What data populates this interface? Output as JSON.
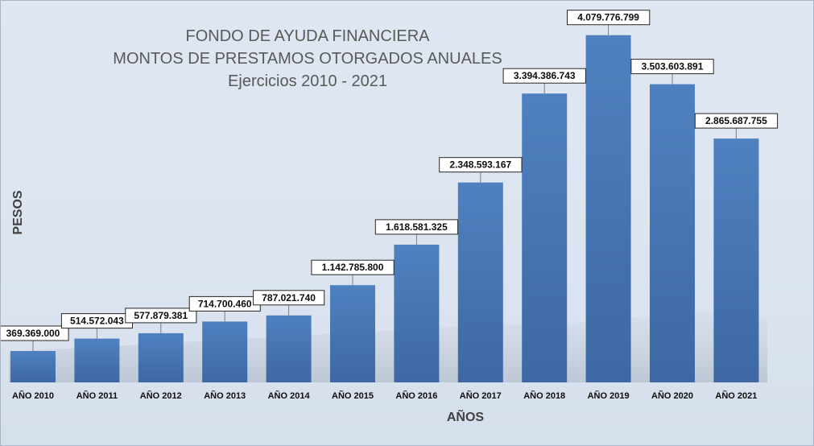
{
  "chart_data": {
    "type": "bar",
    "title_lines": [
      "FONDO DE AYUDA FINANCIERA",
      "MONTOS DE PRESTAMOS OTORGADOS ANUALES",
      "Ejercicios 2010 - 2021"
    ],
    "xlabel": "AÑOS",
    "ylabel": "PESOS",
    "categories": [
      "AÑO 2010",
      "AÑO 2011",
      "AÑO 2012",
      "AÑO 2013",
      "AÑO 2014",
      "AÑO 2015",
      "AÑO 2016",
      "AÑO 2017",
      "AÑO 2018",
      "AÑO 2019",
      "AÑO 2020",
      "AÑO 2021"
    ],
    "values": [
      369369000,
      514572043,
      577879381,
      714700460,
      787021740,
      1142785800,
      1618581325,
      2348593167,
      3394386743,
      4079776799,
      3503603891,
      2865687755
    ],
    "data_labels": [
      "369.369.000",
      "514.572.043",
      "577.879.381",
      "714.700.460",
      "787.021.740",
      "1.142.785.800",
      "1.618.581.325",
      "2.348.593.167",
      "3.394.386.743",
      "4.079.776.799",
      "3.503.603.891",
      "2.865.687.755"
    ],
    "ylim": [
      0,
      4200000000
    ],
    "grid": false,
    "bar_color": "#4a7bbd",
    "background_color": "#dde6f1"
  }
}
